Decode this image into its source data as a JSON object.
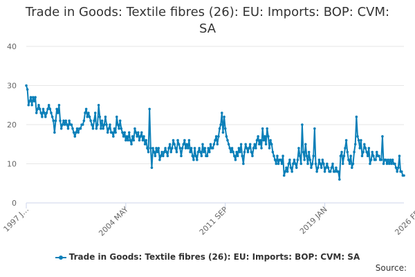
{
  "chart_data": {
    "type": "line",
    "title": "Trade in Goods: Textile fibres (26): EU: Imports: BOP: CVM: SA",
    "title_lines": [
      "Trade in Goods: Textile fibres (26): EU: Imports: BOP: CVM:",
      "SA"
    ],
    "xlabel": "",
    "ylabel": "",
    "ylim": [
      0,
      40
    ],
    "y_ticks": [
      0,
      10,
      20,
      30,
      40
    ],
    "x_tick_labels": [
      "1997 J…",
      "2004 MAY",
      "2011 SEP",
      "2019 JAN",
      "2026 FEB"
    ],
    "x_tick_index": [
      0,
      88,
      176,
      264,
      349
    ],
    "grid": true,
    "legend": "bottom-center",
    "credit": "Source:",
    "series": [
      {
        "name": "Trade in Goods: Textile fibres (26): EU: Imports: BOP: CVM: SA",
        "color": "#0a7fb8",
        "values": [
          30,
          29,
          25,
          26,
          27,
          25,
          27,
          26,
          27,
          23,
          24,
          25,
          24,
          23,
          22,
          24,
          23,
          22,
          23,
          24,
          25,
          24,
          23,
          22,
          21,
          18,
          21,
          24,
          23,
          25,
          21,
          19,
          20,
          21,
          20,
          21,
          20,
          19,
          21,
          20,
          20,
          19,
          18,
          17,
          18,
          19,
          18,
          19,
          19,
          20,
          20,
          21,
          23,
          24,
          22,
          23,
          22,
          21,
          20,
          19,
          21,
          23,
          19,
          20,
          25,
          22,
          19,
          21,
          19,
          20,
          22,
          20,
          18,
          19,
          20,
          18,
          18,
          17,
          19,
          18,
          22,
          20,
          19,
          21,
          19,
          18,
          17,
          18,
          16,
          17,
          16,
          18,
          16,
          15,
          17,
          16,
          19,
          18,
          17,
          18,
          16,
          17,
          18,
          16,
          17,
          15,
          16,
          14,
          13,
          24,
          14,
          9,
          14,
          13,
          12,
          14,
          13,
          14,
          11,
          12,
          13,
          12,
          13,
          14,
          13,
          12,
          14,
          15,
          13,
          14,
          16,
          15,
          14,
          13,
          16,
          15,
          14,
          12,
          14,
          15,
          16,
          14,
          15,
          14,
          16,
          13,
          14,
          12,
          11,
          14,
          12,
          11,
          13,
          14,
          13,
          12,
          15,
          13,
          14,
          12,
          12,
          14,
          13,
          15,
          14,
          14,
          15,
          16,
          17,
          15,
          17,
          19,
          20,
          23,
          18,
          22,
          19,
          17,
          16,
          15,
          14,
          13,
          14,
          13,
          12,
          11,
          13,
          12,
          14,
          13,
          15,
          12,
          10,
          13,
          15,
          14,
          13,
          14,
          15,
          13,
          12,
          14,
          15,
          14,
          16,
          17,
          15,
          16,
          14,
          19,
          16,
          17,
          15,
          19,
          17,
          14,
          16,
          15,
          13,
          12,
          11,
          10,
          12,
          10,
          11,
          11,
          10,
          12,
          7,
          8,
          9,
          8,
          10,
          11,
          9,
          8,
          10,
          11,
          10,
          9,
          11,
          14,
          12,
          10,
          20,
          13,
          11,
          15,
          12,
          10,
          13,
          11,
          9,
          10,
          12,
          19,
          10,
          8,
          9,
          11,
          10,
          9,
          11,
          10,
          8,
          9,
          10,
          9,
          8,
          8,
          9,
          10,
          8,
          8,
          9,
          8,
          8,
          6,
          12,
          13,
          10,
          12,
          14,
          16,
          13,
          11,
          10,
          12,
          9,
          10,
          13,
          15,
          22,
          17,
          16,
          14,
          16,
          12,
          13,
          15,
          14,
          13,
          12,
          14,
          10,
          11,
          13,
          12,
          11,
          11,
          13,
          12,
          12,
          11,
          11,
          17,
          10,
          11,
          11,
          10,
          11,
          10,
          11,
          10,
          11,
          10,
          10,
          9,
          8,
          9,
          12,
          8,
          8,
          7,
          7
        ]
      }
    ]
  }
}
